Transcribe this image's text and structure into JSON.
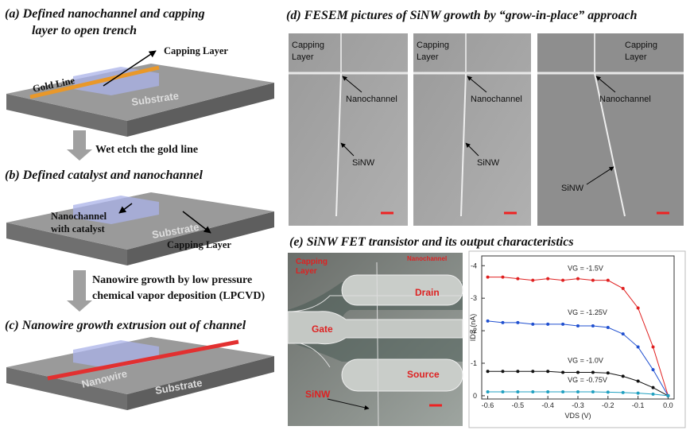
{
  "panels": {
    "a": {
      "title_lines": [
        "(a) Defined nanochannel and capping",
        "layer to open trench"
      ],
      "capping": "Capping Layer",
      "gold": "Gold Line",
      "substrate": "Substrate"
    },
    "step1": "Wet etch the gold line",
    "b": {
      "title": "(b) Defined catalyst and nanochannel",
      "nanochannel_lines": [
        "Nanochannel",
        "with catalyst"
      ],
      "substrate": "Substrate",
      "capping": "Capping Layer"
    },
    "step2_lines": [
      "Nanowire growth by low pressure",
      "chemical vapor deposition (LPCVD)"
    ],
    "c": {
      "title": "(c) Nanowire growth extrusion out of channel",
      "nanowire": "Nanowire",
      "substrate": "Substrate"
    },
    "d": {
      "title": "(d) FESEM pictures of SiNW growth by “grow-in-place” approach",
      "images": [
        {
          "capping_lines": [
            "Capping",
            "Layer"
          ],
          "nanochannel": "Nanochannel",
          "sinw": "SiNW"
        },
        {
          "capping_lines": [
            "Capping",
            "Layer"
          ],
          "nanochannel": "Nanochannel",
          "sinw": "SiNW"
        },
        {
          "capping_lines": [
            "Capping",
            "Layer"
          ],
          "nanochannel": "Nanochannel",
          "sinw": "SiNW"
        }
      ]
    },
    "e": {
      "title": "(e) SiNW FET transistor and its output characteristics",
      "capping_lines": [
        "Capping",
        "Layer"
      ],
      "nanochannel": "Nanochannel",
      "drain": "Drain",
      "gate": "Gate",
      "source": "Source",
      "sinw": "SiNW"
    }
  },
  "chart_data": {
    "type": "line",
    "x_label": "VDS (V)",
    "y_label": "IDS (nA)",
    "x": [
      -0.6,
      -0.55,
      -0.5,
      -0.45,
      -0.4,
      -0.35,
      -0.3,
      -0.25,
      -0.2,
      -0.15,
      -0.1,
      -0.05,
      0
    ],
    "series": [
      {
        "name": "VG = -1.5V",
        "color": "#e02020",
        "values": [
          -3.65,
          -3.65,
          -3.6,
          -3.55,
          -3.6,
          -3.55,
          -3.6,
          -3.55,
          -3.55,
          -3.3,
          -2.7,
          -1.5,
          0
        ]
      },
      {
        "name": "VG = -1.25V",
        "color": "#2050d0",
        "values": [
          -2.3,
          -2.25,
          -2.25,
          -2.2,
          -2.2,
          -2.2,
          -2.15,
          -2.15,
          -2.1,
          -1.9,
          -1.5,
          -0.8,
          0
        ]
      },
      {
        "name": "VG = -1.0V",
        "color": "#111111",
        "values": [
          -0.75,
          -0.75,
          -0.75,
          -0.75,
          -0.75,
          -0.72,
          -0.72,
          -0.72,
          -0.7,
          -0.6,
          -0.45,
          -0.25,
          0
        ]
      },
      {
        "name": "VG = -0.75V",
        "color": "#20a0c0",
        "values": [
          -0.12,
          -0.12,
          -0.12,
          -0.12,
          -0.12,
          -0.12,
          -0.12,
          -0.12,
          -0.11,
          -0.1,
          -0.08,
          -0.05,
          0
        ]
      }
    ],
    "xlim": [
      -0.62,
      0.02
    ],
    "ylim": [
      0.1,
      -4.3
    ],
    "xticks": [
      -0.6,
      -0.5,
      -0.4,
      -0.3,
      -0.2,
      -0.1,
      {
        "value": 0,
        "label": "0.0"
      }
    ],
    "yticks": [
      -4,
      -3,
      -2,
      -1,
      0
    ]
  }
}
